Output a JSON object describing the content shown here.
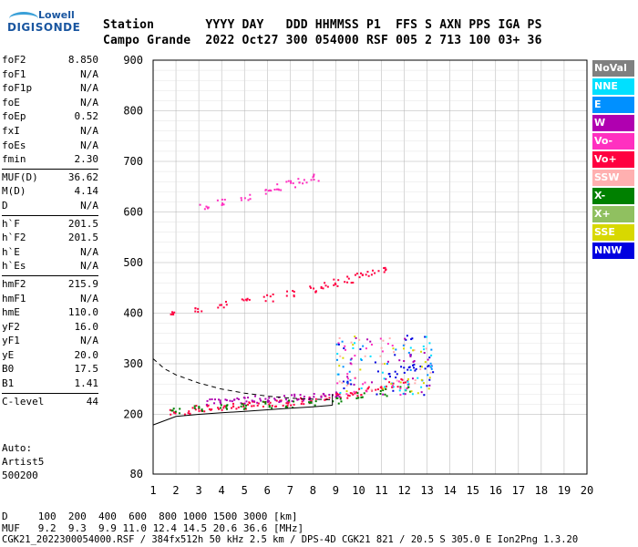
{
  "logo": {
    "line1": "Lowell",
    "line2": "DIGISONDE"
  },
  "header": {
    "row1": "Station       YYYY DAY   DDD HHMMSS P1  FFS S AXN PPS IGA PS",
    "row2": "Campo Grande  2022 Oct27 300 054000 RSF 005 2 713 100 03+ 36"
  },
  "params": [
    {
      "label": "foF2",
      "value": "8.850"
    },
    {
      "label": "foF1",
      "value": "N/A"
    },
    {
      "label": "foF1p",
      "value": "N/A"
    },
    {
      "label": "foE",
      "value": "N/A"
    },
    {
      "label": "foEp",
      "value": "0.52"
    },
    {
      "label": "fxI",
      "value": "N/A"
    },
    {
      "label": "foEs",
      "value": "N/A"
    },
    {
      "label": "fmin",
      "value": "2.30"
    },
    {
      "label": "MUF(D)",
      "value": "36.62"
    },
    {
      "label": "M(D)",
      "value": "4.14"
    },
    {
      "label": "D",
      "value": "N/A"
    },
    {
      "label": "h`F",
      "value": "201.5"
    },
    {
      "label": "h`F2",
      "value": "201.5"
    },
    {
      "label": "h`E",
      "value": "N/A"
    },
    {
      "label": "h`Es",
      "value": "N/A"
    },
    {
      "label": "hmF2",
      "value": "215.9"
    },
    {
      "label": "hmF1",
      "value": "N/A"
    },
    {
      "label": "hmE",
      "value": "110.0"
    },
    {
      "label": "yF2",
      "value": "16.0"
    },
    {
      "label": "yF1",
      "value": "N/A"
    },
    {
      "label": "yE",
      "value": "20.0"
    },
    {
      "label": "B0",
      "value": "17.5"
    },
    {
      "label": "B1",
      "value": "1.41"
    },
    {
      "label": "C-level",
      "value": "44"
    }
  ],
  "auto": {
    "line1": "Auto:",
    "line2": "Artist5",
    "line3": "500200"
  },
  "legend": [
    {
      "label": "NoVal",
      "color": "#808080"
    },
    {
      "label": "NNE",
      "color": "#00e0ff"
    },
    {
      "label": "E",
      "color": "#0090ff"
    },
    {
      "label": "W",
      "color": "#b000b0"
    },
    {
      "label": "Vo-",
      "color": "#ff30c0"
    },
    {
      "label": "Vo+",
      "color": "#ff0040"
    },
    {
      "label": "SSW",
      "color": "#ffb0b0"
    },
    {
      "label": "X-",
      "color": "#008000"
    },
    {
      "label": "X+",
      "color": "#90c060"
    },
    {
      "label": "SSE",
      "color": "#d8d800"
    },
    {
      "label": "NNW",
      "color": "#0000e0"
    }
  ],
  "footer": {
    "row1": "D     100  200  400  600  800 1000 1500 3000 [km]",
    "row2": "MUF   9.2  9.3  9.9 11.0 12.4 14.5 20.6 36.6 [MHz]",
    "row3": "CGK21_2022300054000.RSF / 384fx512h 50 kHz 2.5 km / DPS-4D CGK21 821 / 20.5 S 305.0 E Ion2Png 1.3.20"
  },
  "chart_data": {
    "type": "scatter",
    "xlim": [
      1,
      20
    ],
    "ylim": [
      80,
      900
    ],
    "xticks": [
      "1",
      "2",
      "3",
      "4",
      "5",
      "6",
      "7",
      "8",
      "9",
      "10",
      "11",
      "12",
      "13",
      "14",
      "15",
      "16",
      "17",
      "18",
      "19",
      "20"
    ],
    "yticks": [
      "900",
      "800",
      "700",
      "600",
      "500",
      "400",
      "300",
      "200",
      "80"
    ],
    "grid": true,
    "series": [
      {
        "name": "Vo+",
        "color": "#ff0040",
        "x": [
          1.9,
          2.5,
          3.0,
          3.5,
          4.0,
          4.5,
          5.0,
          5.5,
          6.0,
          6.5,
          7.0,
          7.5,
          8.0,
          8.5,
          9.0,
          9.5,
          10.0,
          10.5,
          11.0,
          11.5,
          12.0
        ],
        "y": [
          205,
          208,
          212,
          214,
          216,
          218,
          219,
          220,
          222,
          224,
          226,
          228,
          230,
          232,
          236,
          240,
          245,
          250,
          256,
          262,
          268
        ]
      },
      {
        "name": "W",
        "color": "#b000b0",
        "x": [
          3.5,
          4.0,
          4.5,
          5.0,
          5.5,
          6.0,
          6.5,
          7.0,
          7.5,
          8.0,
          8.5,
          9.0
        ],
        "y": [
          225,
          228,
          230,
          229,
          231,
          232,
          233,
          234,
          234,
          236,
          238,
          240
        ]
      },
      {
        "name": "X-",
        "color": "#008000",
        "x": [
          2.0,
          3.0,
          4.0,
          5.0,
          6.0,
          7.0,
          8.0,
          9.0,
          10.0,
          11.0,
          12.0
        ],
        "y": [
          210,
          214,
          216,
          218,
          220,
          222,
          225,
          230,
          238,
          245,
          252
        ]
      },
      {
        "name": "Vo+ 2nd",
        "color": "#ff0040",
        "x": [
          1.9,
          3.0,
          4.0,
          5.0,
          6.0,
          7.0,
          8.0,
          8.5,
          9.0,
          9.5,
          10.0,
          10.5,
          11.0
        ],
        "y": [
          404,
          410,
          418,
          425,
          432,
          440,
          450,
          456,
          462,
          468,
          474,
          480,
          488
        ]
      },
      {
        "name": "Vo- 3rd",
        "color": "#ff30c0",
        "x": [
          3.2,
          4.0,
          5.0,
          6.0,
          6.5,
          7.0,
          7.5,
          8.0
        ],
        "y": [
          612,
          620,
          632,
          644,
          650,
          656,
          662,
          670
        ]
      },
      {
        "name": "NNW",
        "color": "#0000e0",
        "x": [
          11.5,
          12.0,
          12.5,
          13.0
        ],
        "y": [
          280,
          290,
          295,
          292
        ]
      }
    ],
    "curves": [
      {
        "name": "solid",
        "x": [
          1.0,
          2.0,
          3.0,
          4.0,
          5.0,
          6.0,
          7.0,
          8.0,
          8.85
        ],
        "y": [
          178,
          195,
          200,
          203,
          206,
          209,
          212,
          215,
          218
        ]
      },
      {
        "name": "dashed",
        "x": [
          1.0,
          1.5,
          2.0,
          3.0,
          4.0,
          5.0,
          6.0,
          7.0,
          8.0,
          8.85
        ],
        "y": [
          310,
          290,
          278,
          262,
          250,
          242,
          236,
          232,
          230,
          229
        ]
      }
    ]
  }
}
